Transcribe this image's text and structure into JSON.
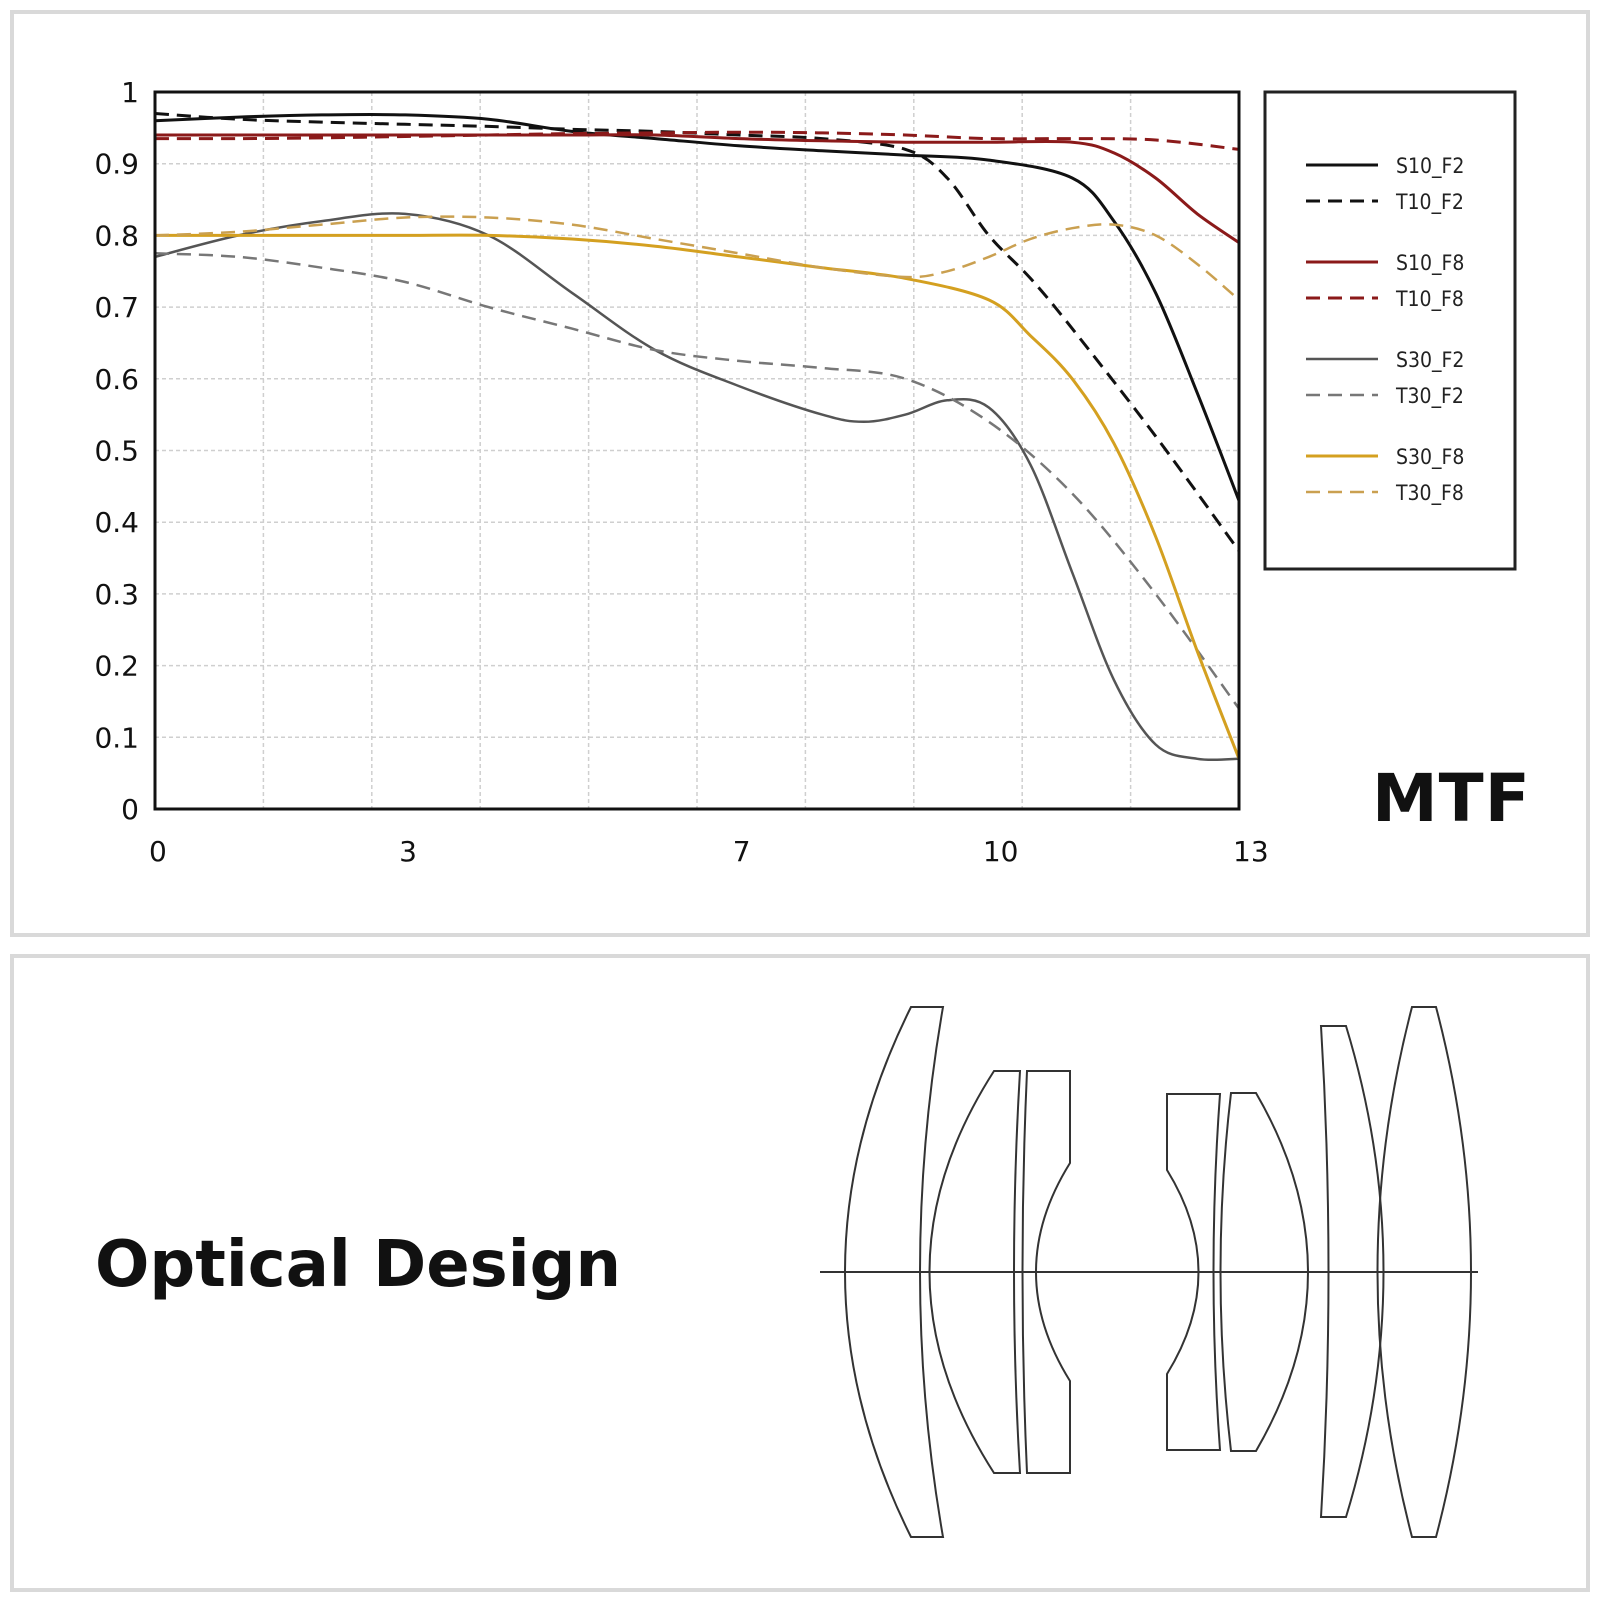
{
  "mtf_title": "MTF",
  "optical_title": "Optical Design",
  "chart_data": {
    "type": "line",
    "xticks": [
      0,
      3,
      7,
      10,
      13
    ],
    "yticks": [
      0,
      0.1,
      0.2,
      0.3,
      0.4,
      0.5,
      0.6,
      0.7,
      0.8,
      0.9,
      1
    ],
    "ytick_labels": [
      "0",
      "0.1",
      "0.2",
      "0.3",
      "0.4",
      "0.5",
      "0.6",
      "0.7",
      "0.8",
      "0.9",
      "1"
    ],
    "xlim": [
      0,
      13
    ],
    "ylim": [
      0,
      1
    ],
    "grid": true,
    "legend_position": "right",
    "series": [
      {
        "name": "S10_F2",
        "color": "#111111",
        "dash": "solid",
        "width": 3,
        "x": [
          0,
          1,
          2,
          3,
          4,
          5,
          6,
          7,
          8,
          9,
          10,
          11,
          11.5,
          12,
          12.5,
          13
        ],
        "y": [
          0.96,
          0.965,
          0.968,
          0.968,
          0.962,
          0.945,
          0.935,
          0.925,
          0.918,
          0.912,
          0.905,
          0.88,
          0.82,
          0.72,
          0.58,
          0.43
        ]
      },
      {
        "name": "T10_F2",
        "color": "#111111",
        "dash": "dashed",
        "width": 3,
        "x": [
          0,
          1,
          2,
          3,
          4,
          5,
          6,
          7,
          8,
          9,
          9.5,
          10,
          10.5,
          11,
          12,
          13
        ],
        "y": [
          0.97,
          0.962,
          0.958,
          0.955,
          0.952,
          0.948,
          0.945,
          0.94,
          0.935,
          0.92,
          0.88,
          0.8,
          0.74,
          0.67,
          0.52,
          0.36
        ]
      },
      {
        "name": "S10_F8",
        "color": "#8b1a1a",
        "dash": "solid",
        "width": 3,
        "x": [
          0,
          1,
          2,
          3,
          4,
          5,
          6,
          7,
          8,
          9,
          10,
          11,
          11.5,
          12,
          12.5,
          13
        ],
        "y": [
          0.94,
          0.94,
          0.94,
          0.94,
          0.94,
          0.94,
          0.94,
          0.935,
          0.932,
          0.93,
          0.93,
          0.93,
          0.915,
          0.88,
          0.83,
          0.79
        ]
      },
      {
        "name": "T10_F8",
        "color": "#8b1a1a",
        "dash": "dashed",
        "width": 3,
        "x": [
          0,
          1,
          2,
          3,
          4,
          5,
          6,
          7,
          8,
          9,
          10,
          11,
          12,
          13
        ],
        "y": [
          0.935,
          0.935,
          0.936,
          0.938,
          0.94,
          0.942,
          0.943,
          0.944,
          0.943,
          0.94,
          0.935,
          0.935,
          0.933,
          0.92
        ]
      },
      {
        "name": "S30_F2",
        "color": "#555555",
        "dash": "solid",
        "width": 2.5,
        "x": [
          0,
          1,
          2,
          3,
          4,
          5,
          6,
          7,
          8,
          8.5,
          9,
          9.5,
          10,
          10.5,
          11,
          11.5,
          12,
          12.5,
          13
        ],
        "y": [
          0.77,
          0.8,
          0.82,
          0.83,
          0.8,
          0.72,
          0.64,
          0.59,
          0.55,
          0.54,
          0.55,
          0.57,
          0.56,
          0.48,
          0.33,
          0.18,
          0.09,
          0.07,
          0.07
        ]
      },
      {
        "name": "T30_F2",
        "color": "#777777",
        "dash": "dashed",
        "width": 2.5,
        "x": [
          0,
          1,
          2,
          3,
          4,
          5,
          6,
          7,
          8,
          9,
          10,
          11,
          12,
          13
        ],
        "y": [
          0.775,
          0.77,
          0.755,
          0.735,
          0.7,
          0.67,
          0.64,
          0.625,
          0.615,
          0.6,
          0.54,
          0.44,
          0.3,
          0.14
        ]
      },
      {
        "name": "S30_F8",
        "color": "#d4a020",
        "dash": "solid",
        "width": 3,
        "x": [
          0,
          1,
          2,
          3,
          4,
          5,
          6,
          7,
          8,
          9,
          10,
          10.5,
          11,
          11.5,
          12,
          12.5,
          13
        ],
        "y": [
          0.8,
          0.8,
          0.8,
          0.8,
          0.8,
          0.795,
          0.785,
          0.77,
          0.755,
          0.74,
          0.71,
          0.66,
          0.6,
          0.51,
          0.38,
          0.22,
          0.07
        ]
      },
      {
        "name": "T30_F8",
        "color": "#caa050",
        "dash": "dashed",
        "width": 2.5,
        "x": [
          0,
          1,
          2,
          3,
          4,
          5,
          6,
          7,
          8,
          9,
          9.5,
          10,
          10.5,
          11,
          11.5,
          12,
          12.5,
          13
        ],
        "y": [
          0.8,
          0.805,
          0.815,
          0.825,
          0.825,
          0.815,
          0.795,
          0.775,
          0.755,
          0.742,
          0.75,
          0.77,
          0.795,
          0.81,
          0.815,
          0.8,
          0.76,
          0.71
        ]
      }
    ]
  }
}
